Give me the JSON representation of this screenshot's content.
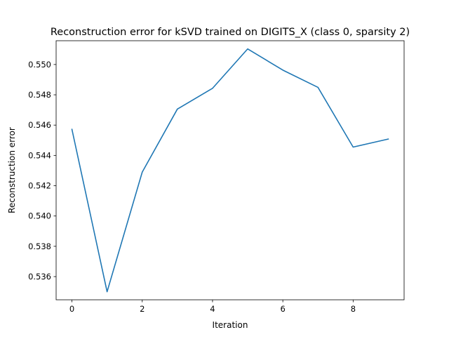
{
  "chart_data": {
    "type": "line",
    "title": "Reconstruction error for kSVD trained on DIGITS_X (class 0, sparsity 2)",
    "xlabel": "Iteration",
    "ylabel": "Reconstruction error",
    "x": [
      0,
      1,
      2,
      3,
      4,
      5,
      6,
      7,
      8,
      9
    ],
    "series": [
      {
        "values": [
          0.54572,
          0.535,
          0.5429,
          0.54706,
          0.54843,
          0.55103,
          0.54963,
          0.54849,
          0.54455,
          0.54508
        ],
        "color": "#1f77b4"
      }
    ],
    "xlim": [
      -0.45,
      9.45
    ],
    "ylim": [
      0.53447,
      0.55157
    ],
    "xticks": [
      0,
      2,
      4,
      6,
      8
    ],
    "xtick_labels": [
      "0",
      "2",
      "4",
      "6",
      "8"
    ],
    "yticks": [
      0.536,
      0.538,
      0.54,
      0.542,
      0.544,
      0.546,
      0.548,
      0.55
    ],
    "ytick_labels": [
      "0.536",
      "0.538",
      "0.540",
      "0.542",
      "0.544",
      "0.546",
      "0.548",
      "0.550"
    ],
    "grid": false,
    "legend": "none"
  }
}
